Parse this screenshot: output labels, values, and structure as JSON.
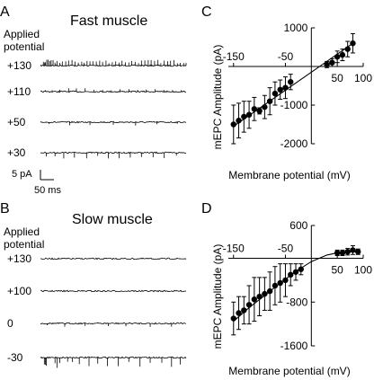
{
  "panels": {
    "A": {
      "letter": "A",
      "title": "Fast muscle",
      "header_line1": "Applied",
      "header_line2": "potential",
      "traces": [
        {
          "label": "+130",
          "events": [
            6,
            8,
            10,
            13,
            16,
            19,
            22,
            26,
            30,
            34,
            40,
            45,
            52,
            58,
            65,
            71,
            78,
            85,
            90,
            96,
            102,
            108,
            115,
            122,
            128,
            135,
            141,
            148,
            155,
            162,
            168,
            175,
            182,
            188,
            195,
            202,
            208,
            215,
            222,
            228,
            235,
            242,
            248,
            255,
            262,
            268,
            275,
            282,
            288,
            295,
            300
          ],
          "direction": 1,
          "amp": 5
        },
        {
          "label": "+110",
          "events": [
            10,
            24,
            40,
            58,
            74,
            92,
            110,
            128,
            146,
            164,
            182,
            200,
            218,
            236,
            254,
            272,
            290
          ],
          "direction": 1,
          "amp": 3
        },
        {
          "label": "+50",
          "events": [
            18,
            60,
            102,
            150,
            196,
            240,
            282
          ],
          "direction": -1,
          "amp": 3
        },
        {
          "label": "+30",
          "events": [
            12,
            30,
            48,
            70,
            95,
            118,
            140,
            162,
            185,
            208,
            232,
            255,
            280
          ],
          "direction": -1,
          "amp": 5
        }
      ],
      "scale_y": "5 pA",
      "scale_x": "50 ms"
    },
    "B": {
      "letter": "B",
      "title": "Slow muscle",
      "header_line1": "Applied",
      "header_line2": "potential",
      "traces": [
        {
          "label": "+130",
          "events": [],
          "direction": 1,
          "amp": 0
        },
        {
          "label": "+100",
          "events": [],
          "direction": 1,
          "amp": 0
        },
        {
          "label": "0",
          "events": [
            14,
            50,
            92,
            140,
            176,
            226,
            270
          ],
          "direction": -1,
          "amp": 4
        },
        {
          "label": "-30",
          "events": [
            8,
            10,
            12,
            30,
            34,
            40,
            56,
            66,
            80,
            100,
            118,
            138,
            160,
            182,
            205,
            226,
            250,
            270,
            288
          ],
          "direction": -1,
          "amp": 9
        }
      ]
    },
    "C": {
      "letter": "C",
      "ylabel": "mEPC Amplitude (pA)",
      "xlabel": "Membrane potential (mV)"
    },
    "D": {
      "letter": "D",
      "ylabel": "mEPC Amplitude (pA)",
      "xlabel": "Membrane potential (mV)"
    }
  },
  "chart_data": [
    {
      "id": "C",
      "type": "scatter",
      "xlabel": "Membrane potential (mV)",
      "ylabel": "mEPC Amplitude (pA)",
      "xlim": [
        -160,
        100
      ],
      "ylim": [
        -2000,
        1000
      ],
      "xticks": [
        -150,
        -50,
        50,
        100
      ],
      "yticks": [
        1000,
        -1000,
        -2000
      ],
      "x": [
        -150,
        -140,
        -130,
        -120,
        -110,
        -100,
        -90,
        -80,
        -70,
        -60,
        -50,
        -40,
        30,
        40,
        50,
        60,
        70,
        80
      ],
      "y": [
        -1500,
        -1400,
        -1300,
        -1250,
        -1100,
        -1150,
        -1050,
        -900,
        -700,
        -600,
        -550,
        -400,
        50,
        100,
        250,
        300,
        450,
        600
      ],
      "yerr": [
        500,
        450,
        400,
        350,
        300,
        80,
        300,
        350,
        300,
        250,
        280,
        200,
        80,
        100,
        150,
        150,
        200,
        250
      ],
      "fit": {
        "type": "linear",
        "x": [
          -150,
          80
        ],
        "y": [
          -1550,
          600
        ]
      }
    },
    {
      "id": "D",
      "type": "scatter",
      "xlabel": "Membrane potential (mV)",
      "ylabel": "mEPC Amplitude (pA)",
      "xlim": [
        -160,
        100
      ],
      "ylim": [
        -1600,
        600
      ],
      "xticks": [
        -150,
        -50,
        50,
        100
      ],
      "yticks": [
        600,
        -800,
        -1600
      ],
      "x": [
        -150,
        -140,
        -130,
        -120,
        -110,
        -100,
        -90,
        -80,
        -70,
        -60,
        -50,
        -40,
        -30,
        -20,
        50,
        60,
        70,
        80,
        90
      ],
      "y": [
        -1100,
        -1000,
        -950,
        -850,
        -750,
        -700,
        -650,
        -600,
        -500,
        -450,
        -400,
        -300,
        -250,
        -200,
        100,
        100,
        120,
        150,
        120
      ],
      "yerr": [
        300,
        300,
        250,
        350,
        400,
        350,
        300,
        350,
        350,
        350,
        300,
        200,
        150,
        100,
        50,
        50,
        60,
        80,
        50
      ],
      "fit": {
        "type": "curve",
        "x": [
          -150,
          -120,
          -90,
          -60,
          -30,
          0,
          30,
          60,
          90
        ],
        "y": [
          -1150,
          -900,
          -680,
          -450,
          -240,
          -60,
          60,
          120,
          120
        ]
      }
    }
  ]
}
